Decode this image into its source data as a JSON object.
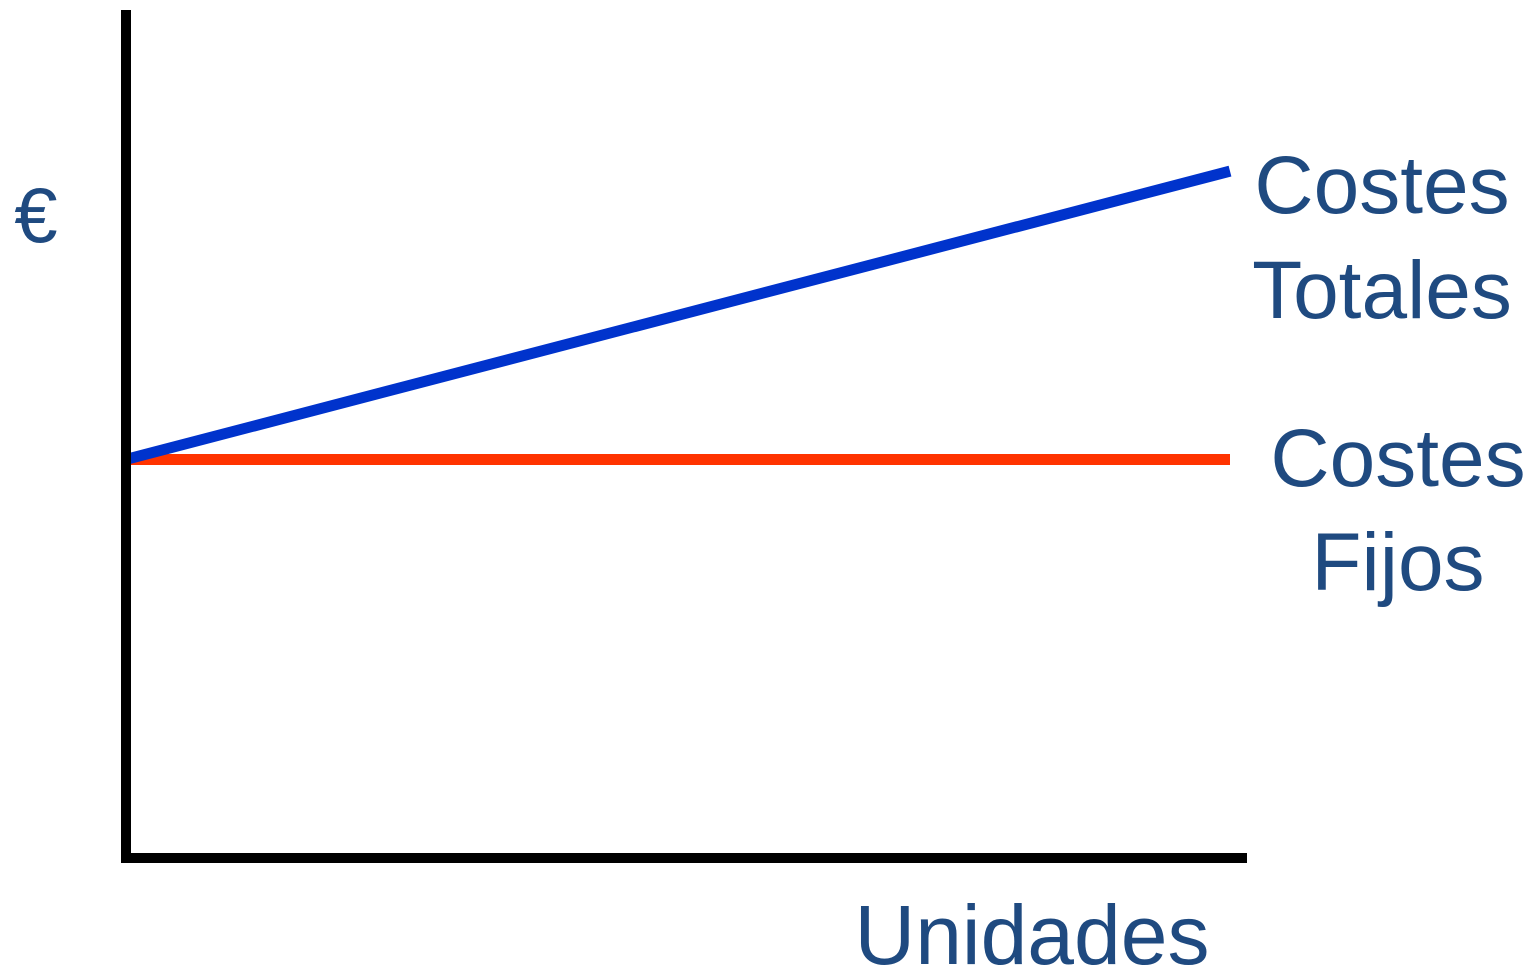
{
  "chart_data": {
    "type": "line",
    "title": "",
    "ylabel": "€",
    "xlabel": "Unidades",
    "x": [
      0,
      1
    ],
    "ylim": [
      0,
      1
    ],
    "xlim": [
      0,
      1
    ],
    "grid": false,
    "series": [
      {
        "name": "Costes Totales",
        "label_lines": [
          "Costes",
          "Totales"
        ],
        "values": [
          0.47,
          0.81
        ],
        "color": "#0033cc"
      },
      {
        "name": "Costes Fijos",
        "label_lines": [
          "Costes",
          "Fijos"
        ],
        "values": [
          0.47,
          0.47
        ],
        "color": "#ff3300"
      }
    ],
    "axis_color": "#000000",
    "label_color": "#1f4a80"
  }
}
